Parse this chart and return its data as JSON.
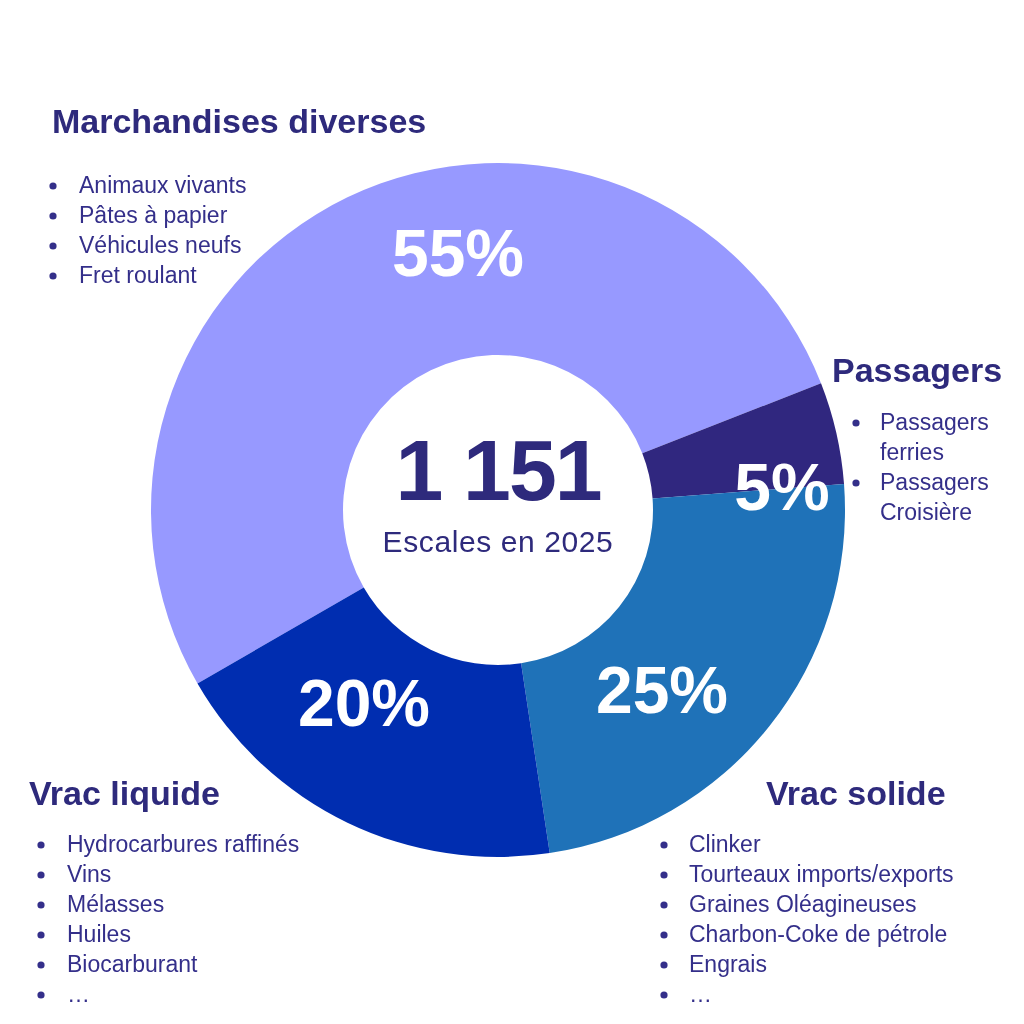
{
  "chart_data": {
    "type": "donut",
    "categories": [
      "Marchandises diverses",
      "Passagers",
      "Vrac solide",
      "Vrac liquide"
    ],
    "values": [
      55,
      5,
      25,
      20
    ],
    "colors": [
      "#9799ff",
      "#30277f",
      "#1f72b8",
      "#002db0"
    ],
    "value_labels": [
      "55%",
      "5%",
      "25%",
      "20%"
    ],
    "annotations": [
      "1 151",
      "Escales en 2025",
      {
        "text": "Animaux vivants",
        "x": "Marchandises diverses"
      },
      {
        "text": "Pâtes à papier",
        "x": "Marchandises diverses"
      },
      {
        "text": "Véhicules neufs",
        "x": "Marchandises diverses"
      },
      {
        "text": "Fret roulant",
        "x": "Marchandises diverses"
      },
      {
        "text": "Passagers ferries",
        "x": "Passagers"
      },
      {
        "text": "Passagers Croisière",
        "x": "Passagers"
      },
      {
        "text": "Clinker",
        "x": "Vrac solide"
      },
      {
        "text": "Tourteaux imports/exports",
        "x": "Vrac solide"
      },
      {
        "text": "Graines Oléagineuses",
        "x": "Vrac solide"
      },
      {
        "text": "Charbon-Coke de pétrole",
        "x": "Vrac solide"
      },
      {
        "text": "Engrais",
        "x": "Vrac solide"
      },
      {
        "text": "…",
        "x": "Vrac solide"
      },
      {
        "text": "Hydrocarbures raffinés",
        "x": "Vrac liquide"
      },
      {
        "text": "Vins",
        "x": "Vrac liquide"
      },
      {
        "text": "Mélasses",
        "x": "Vrac liquide"
      },
      {
        "text": "Huiles",
        "x": "Vrac liquide"
      },
      {
        "text": "Biocarburant",
        "x": "Vrac liquide"
      },
      {
        "text": "…",
        "x": "Vrac liquide"
      }
    ]
  }
}
